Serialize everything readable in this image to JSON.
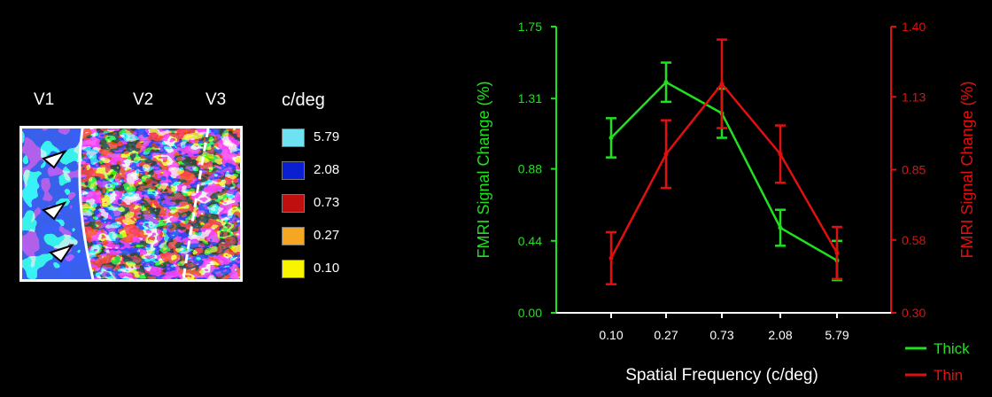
{
  "figure": {
    "area_labels": [
      "V1",
      "V2",
      "V3"
    ],
    "legend_title": "c/deg",
    "legend": [
      {
        "label": "5.79",
        "color": "#6fe2f2"
      },
      {
        "label": "2.08",
        "color": "#0a1fd0"
      },
      {
        "label": "0.73",
        "color": "#c00f0f"
      },
      {
        "label": "0.27",
        "color": "#f5a623"
      },
      {
        "label": "0.10",
        "color": "#f8f400"
      }
    ]
  },
  "chart_data": {
    "type": "line",
    "categories": [
      "0.10",
      "0.27",
      "0.73",
      "2.08",
      "5.79"
    ],
    "xlabel": "Spatial Frequency (c/deg)",
    "ylabel_left": "FMRI  Signal Change (%)",
    "ylabel_right": "FMRI  Signal Change (%)",
    "ylim_left": [
      0.0,
      1.75
    ],
    "yticks_left": [
      "0.00",
      "0.44",
      "0.88",
      "1.31",
      "1.75"
    ],
    "ylim_right": [
      0.3,
      1.4
    ],
    "yticks_right": [
      "0.30",
      "0.58",
      "0.85",
      "1.13",
      "1.40"
    ],
    "series": [
      {
        "name": "Thick",
        "axis": "left",
        "color": "#20e020",
        "values": [
          1.07,
          1.41,
          1.22,
          0.52,
          0.32
        ],
        "errors": [
          0.12,
          0.12,
          0.15,
          0.11,
          0.12
        ]
      },
      {
        "name": "Thin",
        "axis": "right",
        "color": "#e01010",
        "values": [
          0.51,
          0.91,
          1.18,
          0.91,
          0.53
        ],
        "errors": [
          0.1,
          0.13,
          0.17,
          0.11,
          0.1
        ]
      }
    ],
    "legend_position": "bottom-right"
  }
}
